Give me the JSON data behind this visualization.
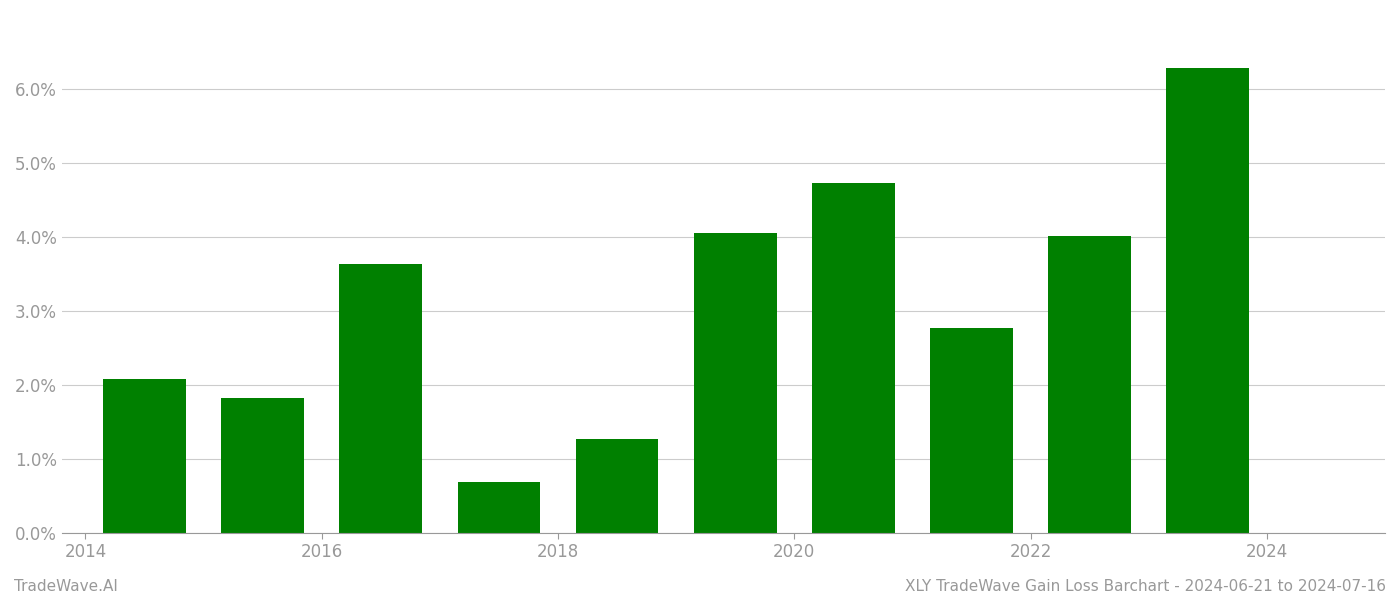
{
  "years": [
    2014,
    2015,
    2016,
    2017,
    2018,
    2019,
    2020,
    2021,
    2022,
    2023
  ],
  "values": [
    0.0208,
    0.0182,
    0.0363,
    0.0068,
    0.0126,
    0.0405,
    0.0473,
    0.0277,
    0.0401,
    0.0628
  ],
  "bar_color": "#008000",
  "background_color": "#ffffff",
  "ylim": [
    0,
    0.07
  ],
  "yticks": [
    0.0,
    0.01,
    0.02,
    0.03,
    0.04,
    0.05,
    0.06
  ],
  "xlabel": "",
  "ylabel": "",
  "footer_left": "TradeWave.AI",
  "footer_right": "XLY TradeWave Gain Loss Barchart - 2024-06-21 to 2024-07-16",
  "grid_color": "#cccccc",
  "tick_color": "#999999",
  "footer_fontsize": 11,
  "bar_width": 0.7,
  "xtick_positions": [
    2013.5,
    2015.5,
    2017.5,
    2019.5,
    2021.5,
    2023.5
  ],
  "xtick_labels": [
    "2014",
    "2016",
    "2018",
    "2020",
    "2022",
    "2024"
  ]
}
